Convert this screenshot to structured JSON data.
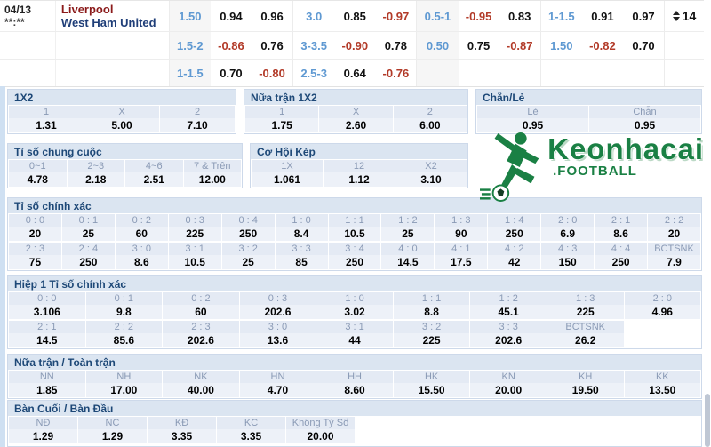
{
  "match": {
    "date": "04/13",
    "time": "**:**",
    "home_team": "Liverpool",
    "away_team": "West Ham United",
    "counter": "14",
    "rows": [
      [
        {
          "v": "1.50",
          "c": "blue"
        },
        {
          "v": "0.94",
          "c": "k"
        },
        {
          "v": "0.96",
          "c": "k"
        },
        {
          "v": "3.0",
          "c": "blue"
        },
        {
          "v": "0.85",
          "c": "k"
        },
        {
          "v": "-0.97",
          "c": "red"
        },
        {
          "v": "0.5-1",
          "c": "blue"
        },
        {
          "v": "-0.95",
          "c": "red"
        },
        {
          "v": "0.83",
          "c": "k"
        },
        {
          "v": "1-1.5",
          "c": "blue"
        },
        {
          "v": "0.91",
          "c": "k"
        },
        {
          "v": "0.97",
          "c": "k"
        }
      ],
      [
        {
          "v": "1.5-2",
          "c": "blue"
        },
        {
          "v": "-0.86",
          "c": "red"
        },
        {
          "v": "0.76",
          "c": "k"
        },
        {
          "v": "3-3.5",
          "c": "blue"
        },
        {
          "v": "-0.90",
          "c": "red"
        },
        {
          "v": "0.78",
          "c": "k"
        },
        {
          "v": "0.50",
          "c": "blue"
        },
        {
          "v": "0.75",
          "c": "k"
        },
        {
          "v": "-0.87",
          "c": "red"
        },
        {
          "v": "1.50",
          "c": "blue"
        },
        {
          "v": "-0.82",
          "c": "red"
        },
        {
          "v": "0.70",
          "c": "k"
        }
      ],
      [
        {
          "v": "1-1.5",
          "c": "blue"
        },
        {
          "v": "0.70",
          "c": "k"
        },
        {
          "v": "-0.80",
          "c": "red"
        },
        {
          "v": "2.5-3",
          "c": "blue"
        },
        {
          "v": "0.64",
          "c": "k"
        },
        {
          "v": "-0.76",
          "c": "red"
        },
        {
          "v": "",
          "c": ""
        },
        {
          "v": "",
          "c": ""
        },
        {
          "v": "",
          "c": ""
        },
        {
          "v": "",
          "c": ""
        },
        {
          "v": "",
          "c": ""
        },
        {
          "v": "",
          "c": ""
        }
      ]
    ]
  },
  "sections": {
    "one_x_two": {
      "title": "1X2",
      "cols": [
        {
          "label": "1",
          "value": "1.31"
        },
        {
          "label": "X",
          "value": "5.00"
        },
        {
          "label": "2",
          "value": "7.10"
        }
      ]
    },
    "ht_one_x_two": {
      "title": "Nữa trận 1X2",
      "cols": [
        {
          "label": "1",
          "value": "1.75"
        },
        {
          "label": "X",
          "value": "2.60"
        },
        {
          "label": "2",
          "value": "6.00"
        }
      ]
    },
    "odd_even": {
      "title": "Chẵn/Lẻ",
      "cols": [
        {
          "label": "Lẻ",
          "value": "0.95"
        },
        {
          "label": "Chẵn",
          "value": "0.95"
        }
      ]
    },
    "total_score": {
      "title": "Tỉ số chung cuộc",
      "cols": [
        {
          "label": "0~1",
          "value": "4.78"
        },
        {
          "label": "2~3",
          "value": "2.18"
        },
        {
          "label": "4~6",
          "value": "2.51"
        },
        {
          "label": "7 & Trên",
          "value": "12.00"
        }
      ]
    },
    "double_chance": {
      "title": "Cơ Hội Kép",
      "cols": [
        {
          "label": "1X",
          "value": "1.061"
        },
        {
          "label": "12",
          "value": "1.12"
        },
        {
          "label": "X2",
          "value": "3.10"
        }
      ]
    },
    "correct_score": {
      "title": "Tỉ số chính xác",
      "rows": [
        [
          {
            "label": "0 : 0",
            "value": "20"
          },
          {
            "label": "0 : 1",
            "value": "25"
          },
          {
            "label": "0 : 2",
            "value": "60"
          },
          {
            "label": "0 : 3",
            "value": "225"
          },
          {
            "label": "0 : 4",
            "value": "250"
          },
          {
            "label": "1 : 0",
            "value": "8.4"
          },
          {
            "label": "1 : 1",
            "value": "10.5"
          },
          {
            "label": "1 : 2",
            "value": "25"
          },
          {
            "label": "1 : 3",
            "value": "90"
          },
          {
            "label": "1 : 4",
            "value": "250"
          },
          {
            "label": "2 : 0",
            "value": "6.9"
          },
          {
            "label": "2 : 1",
            "value": "8.6"
          },
          {
            "label": "2 : 2",
            "value": "20"
          }
        ],
        [
          {
            "label": "2 : 3",
            "value": "75"
          },
          {
            "label": "2 : 4",
            "value": "250"
          },
          {
            "label": "3 : 0",
            "value": "8.6"
          },
          {
            "label": "3 : 1",
            "value": "10.5"
          },
          {
            "label": "3 : 2",
            "value": "25"
          },
          {
            "label": "3 : 3",
            "value": "85"
          },
          {
            "label": "3 : 4",
            "value": "250"
          },
          {
            "label": "4 : 0",
            "value": "14.5"
          },
          {
            "label": "4 : 1",
            "value": "17.5"
          },
          {
            "label": "4 : 2",
            "value": "42"
          },
          {
            "label": "4 : 3",
            "value": "150"
          },
          {
            "label": "4 : 4",
            "value": "250"
          },
          {
            "label": "BCTSNK",
            "value": "7.9"
          }
        ]
      ]
    },
    "h1_correct_score": {
      "title": "Hiệp 1 Tỉ số chính xác",
      "rows": [
        [
          {
            "label": "0 : 0",
            "value": "3.106"
          },
          {
            "label": "0 : 1",
            "value": "9.8"
          },
          {
            "label": "0 : 2",
            "value": "60"
          },
          {
            "label": "0 : 3",
            "value": "202.6"
          },
          {
            "label": "1 : 0",
            "value": "3.02"
          },
          {
            "label": "1 : 1",
            "value": "8.8"
          },
          {
            "label": "1 : 2",
            "value": "45.1"
          },
          {
            "label": "1 : 3",
            "value": "225"
          },
          {
            "label": "2 : 0",
            "value": "4.96"
          }
        ],
        [
          {
            "label": "2 : 1",
            "value": "14.5"
          },
          {
            "label": "2 : 2",
            "value": "85.6"
          },
          {
            "label": "2 : 3",
            "value": "202.6"
          },
          {
            "label": "3 : 0",
            "value": "13.6"
          },
          {
            "label": "3 : 1",
            "value": "44"
          },
          {
            "label": "3 : 2",
            "value": "225"
          },
          {
            "label": "3 : 3",
            "value": "202.6"
          },
          {
            "label": "BCTSNK",
            "value": "26.2"
          },
          {
            "label": "",
            "value": "",
            "empty": true
          }
        ]
      ]
    },
    "ht_ft": {
      "title": "Nữa trận / Toàn trận",
      "cols": [
        {
          "label": "NN",
          "value": "1.85"
        },
        {
          "label": "NH",
          "value": "17.00"
        },
        {
          "label": "NK",
          "value": "40.00"
        },
        {
          "label": "HN",
          "value": "4.70"
        },
        {
          "label": "HH",
          "value": "8.60"
        },
        {
          "label": "HK",
          "value": "15.50"
        },
        {
          "label": "KN",
          "value": "20.00"
        },
        {
          "label": "KH",
          "value": "19.50"
        },
        {
          "label": "KK",
          "value": "13.50"
        }
      ]
    },
    "last_first_goal": {
      "title": "Bàn Cuối / Bàn Đầu",
      "cols": [
        {
          "label": "NĐ",
          "value": "1.29"
        },
        {
          "label": "NC",
          "value": "1.29"
        },
        {
          "label": "KĐ",
          "value": "3.35"
        },
        {
          "label": "KC",
          "value": "3.35"
        },
        {
          "label": "Không Tỷ Số",
          "value": "20.00"
        }
      ]
    }
  },
  "logo": {
    "brand": "Keonhacai",
    "sub": ".FOOTBALL"
  },
  "colors": {
    "accent_blue": "#5f99d2",
    "negative_red": "#b23a28",
    "section_header_bg": "#dbe5f1",
    "section_header_text": "#1d4877",
    "brand_green": "#1a8044"
  }
}
